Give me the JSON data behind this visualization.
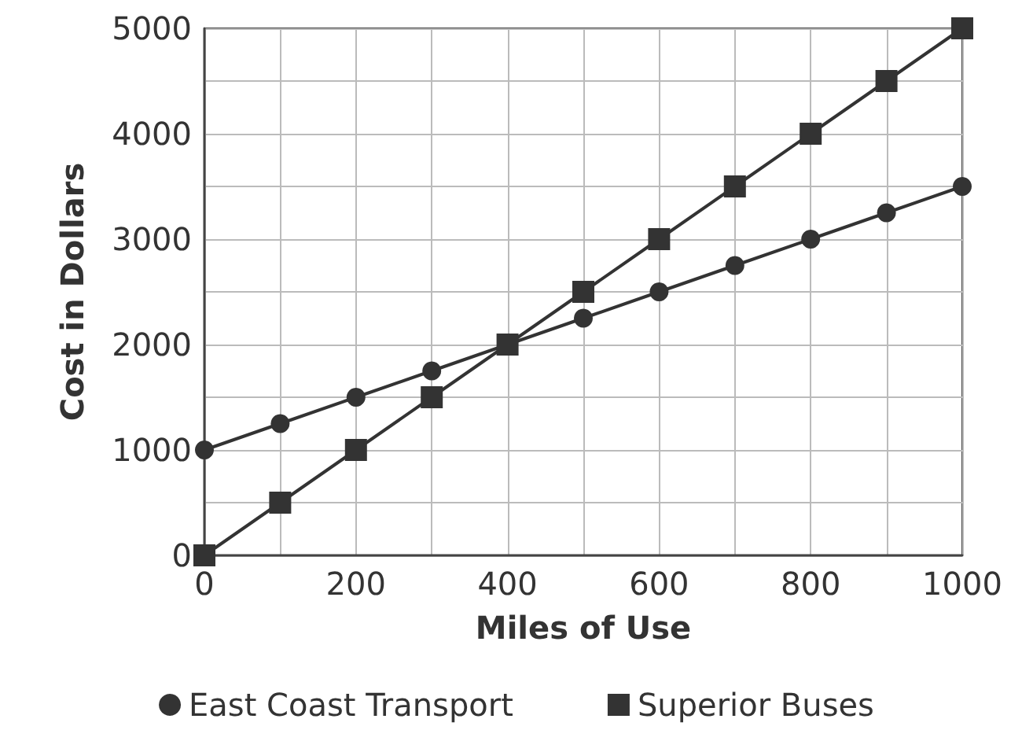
{
  "chart_data": {
    "type": "line",
    "xlabel": "Miles of Use",
    "ylabel": "Cost in Dollars",
    "x": [
      0,
      100,
      200,
      300,
      400,
      500,
      600,
      700,
      800,
      900,
      1000
    ],
    "series": [
      {
        "name": "East Coast Transport",
        "color": "#333333",
        "marker": "circle",
        "values": [
          1000,
          1250,
          1500,
          1750,
          2000,
          2250,
          2500,
          2750,
          3000,
          3250,
          3500
        ]
      },
      {
        "name": "Superior Buses",
        "color": "#333333",
        "marker": "square",
        "values": [
          0,
          500,
          1000,
          1500,
          2000,
          2500,
          3000,
          3500,
          4000,
          4500,
          5000
        ]
      }
    ],
    "xlim": [
      0,
      1000
    ],
    "xticks": [
      0,
      {
        "value": 100,
        "label": null
      },
      200,
      {
        "value": 300,
        "label": null
      },
      400,
      {
        "value": 500,
        "label": null
      },
      600,
      {
        "value": 700,
        "label": null
      },
      800,
      {
        "value": 900,
        "label": null
      },
      1000
    ],
    "ylim": [
      0,
      5000
    ],
    "yticks": [
      0,
      {
        "value": 500,
        "label": null
      },
      1000,
      {
        "value": 1500,
        "label": null
      },
      2000,
      {
        "value": 2500,
        "label": null
      },
      3000,
      {
        "value": 3500,
        "label": null
      },
      4000,
      {
        "value": 4500,
        "label": null
      },
      5000
    ],
    "grid": true,
    "legend": "bottom"
  }
}
